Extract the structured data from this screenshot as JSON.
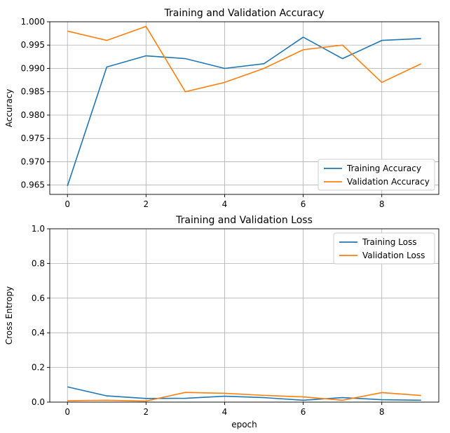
{
  "chart_data": [
    {
      "type": "line",
      "title": "Training and Validation Accuracy",
      "xlabel": "",
      "ylabel": "Accuracy",
      "xlim": [
        -0.45,
        9.45
      ],
      "ylim": [
        0.963,
        1.0
      ],
      "xticks": [
        0,
        2,
        4,
        6,
        8
      ],
      "xtick_labels": [
        "0",
        "2",
        "4",
        "6",
        "8"
      ],
      "yticks": [
        0.965,
        0.97,
        0.975,
        0.98,
        0.985,
        0.99,
        0.995,
        1.0
      ],
      "ytick_labels": [
        "0.965",
        "0.970",
        "0.975",
        "0.980",
        "0.985",
        "0.990",
        "0.995",
        "1.000"
      ],
      "grid": true,
      "legend_position": "lower-right",
      "x": [
        0,
        1,
        2,
        3,
        4,
        5,
        6,
        7,
        8,
        9
      ],
      "series": [
        {
          "name": "Training Accuracy",
          "color": "#1f77b4",
          "values": [
            0.9648,
            0.9903,
            0.9927,
            0.9921,
            0.99,
            0.991,
            0.9967,
            0.9921,
            0.996,
            0.9964
          ]
        },
        {
          "name": "Validation Accuracy",
          "color": "#ff7f0e",
          "values": [
            0.998,
            0.996,
            0.999,
            0.985,
            0.987,
            0.99,
            0.994,
            0.995,
            0.987,
            0.991
          ]
        }
      ]
    },
    {
      "type": "line",
      "title": "Training and Validation Loss",
      "xlabel": "epoch",
      "ylabel": "Cross Entropy",
      "xlim": [
        -0.45,
        9.45
      ],
      "ylim": [
        0,
        1.0
      ],
      "xticks": [
        0,
        2,
        4,
        6,
        8
      ],
      "xtick_labels": [
        "0",
        "2",
        "4",
        "6",
        "8"
      ],
      "yticks": [
        0,
        0.2,
        0.4,
        0.6,
        0.8,
        1.0
      ],
      "ytick_labels": [
        "0.0",
        "0.2",
        "0.4",
        "0.6",
        "0.8",
        "1.0"
      ],
      "grid": true,
      "legend_position": "upper-right",
      "x": [
        0,
        1,
        2,
        3,
        4,
        5,
        6,
        7,
        8,
        9
      ],
      "series": [
        {
          "name": "Training Loss",
          "color": "#1f77b4",
          "values": [
            0.088,
            0.036,
            0.021,
            0.022,
            0.034,
            0.026,
            0.011,
            0.026,
            0.014,
            0.011
          ]
        },
        {
          "name": "Validation Loss",
          "color": "#ff7f0e",
          "values": [
            0.008,
            0.011,
            0.006,
            0.056,
            0.051,
            0.039,
            0.03,
            0.011,
            0.055,
            0.038
          ]
        }
      ]
    }
  ]
}
